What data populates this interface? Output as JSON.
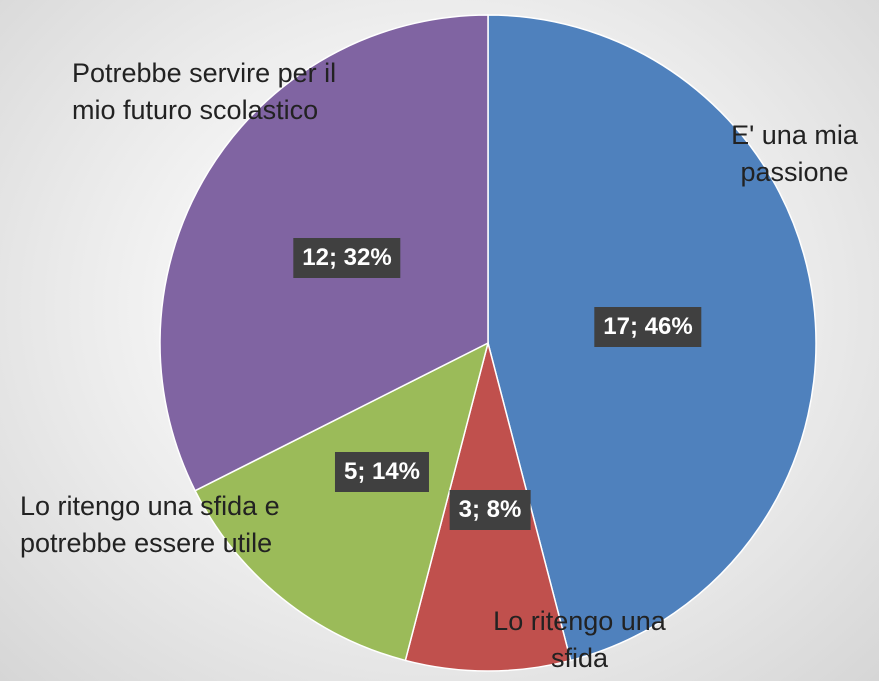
{
  "chart_data": {
    "type": "pie",
    "categories": [
      "E' una mia passione",
      "Lo ritengo una sfida",
      "Lo ritengo una sfida e potrebbe essere utile",
      "Potrebbe servire per il mio futuro scolastico"
    ],
    "values": [
      17,
      3,
      5,
      12
    ],
    "value_labels": [
      "17; 46%",
      "3; 8%",
      "5; 14%",
      "12; 32%"
    ],
    "colors": [
      "#4f81bd",
      "#c0504d",
      "#9bbb59",
      "#8064a2"
    ]
  }
}
